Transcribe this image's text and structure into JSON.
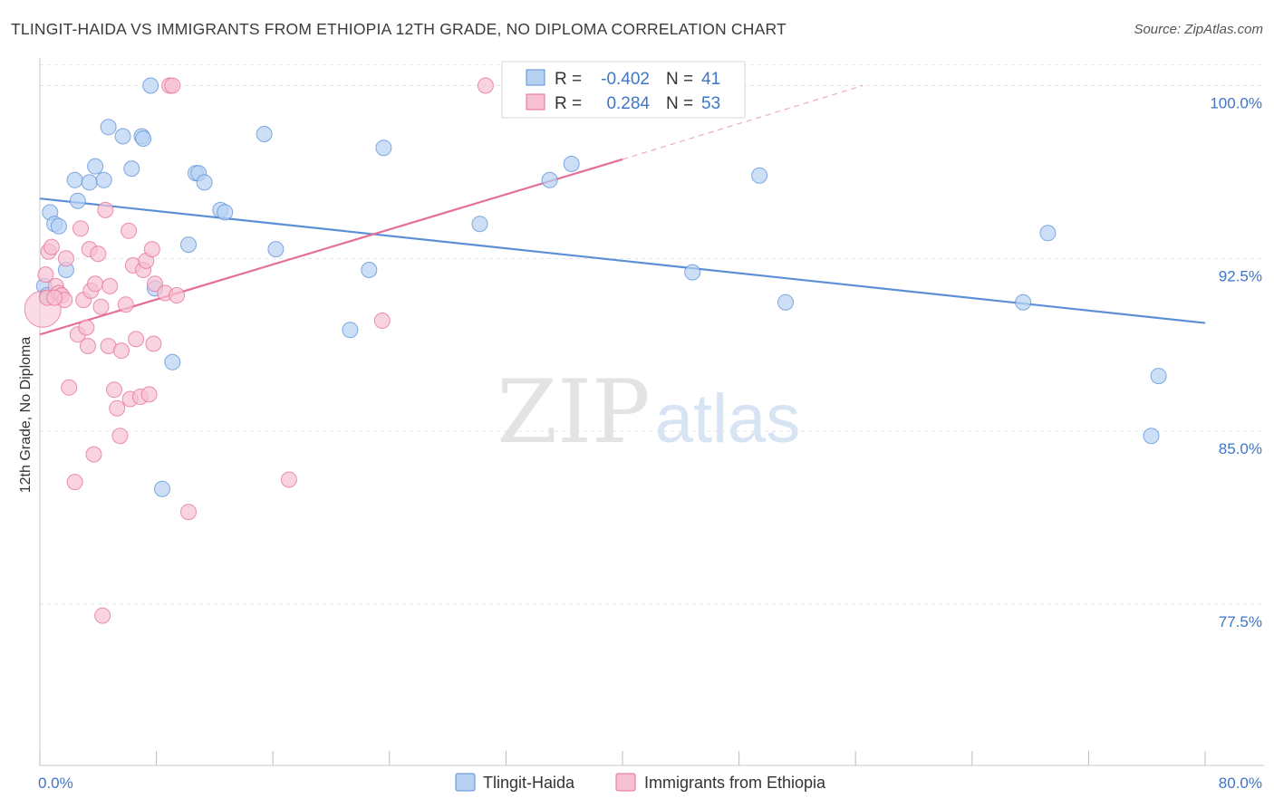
{
  "title": "TLINGIT-HAIDA VS IMMIGRANTS FROM ETHIOPIA 12TH GRADE, NO DIPLOMA CORRELATION CHART",
  "source": "Source: ZipAtlas.com",
  "watermark": {
    "zip": "ZIP",
    "atlas": "atlas"
  },
  "stats_legend": [
    {
      "r_label": "R =",
      "r_value": "-0.402",
      "n_label": "N =",
      "n_value": "41",
      "color": "#5b8fd6",
      "fill": "#b7d1f3"
    },
    {
      "r_label": "R =",
      "r_value": "0.284",
      "n_label": "N =",
      "n_value": "53",
      "color": "#e46f97",
      "fill": "#f7c0d2"
    }
  ],
  "chart_data": {
    "type": "scatter",
    "xlabel": "",
    "ylabel": "12th Grade, No Diploma",
    "xlim": [
      0,
      80
    ],
    "ylim": [
      70.5,
      101.2
    ],
    "x_tick_labels": [
      "0.0%",
      "80.0%"
    ],
    "y_ticks": [
      77.5,
      85.0,
      92.5,
      100.0
    ],
    "y_tick_labels": [
      "77.5%",
      "85.0%",
      "92.5%",
      "100.0%"
    ],
    "grid": "horizontal dashed",
    "legend_position": "bottom",
    "series": [
      {
        "name": "Tlingit-Haida",
        "color": "#5b8fd6",
        "fill": "#b7d1f3",
        "trend": {
          "x": [
            0,
            80
          ],
          "y": [
            95.1,
            89.7
          ],
          "style": "solid"
        },
        "points": [
          [
            0.3,
            91.3
          ],
          [
            0.5,
            90.9
          ],
          [
            0.7,
            94.5
          ],
          [
            1.0,
            94.0
          ],
          [
            1.3,
            93.9
          ],
          [
            1.8,
            92.0
          ],
          [
            2.4,
            95.9
          ],
          [
            2.6,
            95.0
          ],
          [
            3.4,
            95.8
          ],
          [
            3.8,
            96.5
          ],
          [
            4.4,
            95.9
          ],
          [
            4.7,
            98.2
          ],
          [
            5.7,
            97.8
          ],
          [
            6.3,
            96.4
          ],
          [
            7.0,
            97.8
          ],
          [
            7.1,
            97.7
          ],
          [
            7.6,
            100.0
          ],
          [
            7.9,
            91.2
          ],
          [
            8.4,
            82.5
          ],
          [
            9.1,
            88.0
          ],
          [
            10.2,
            93.1
          ],
          [
            10.7,
            96.2
          ],
          [
            10.9,
            96.2
          ],
          [
            11.3,
            95.8
          ],
          [
            12.4,
            94.6
          ],
          [
            12.7,
            94.5
          ],
          [
            15.4,
            97.9
          ],
          [
            16.2,
            92.9
          ],
          [
            21.3,
            89.4
          ],
          [
            22.6,
            92.0
          ],
          [
            23.6,
            97.3
          ],
          [
            30.2,
            94.0
          ],
          [
            35.0,
            95.9
          ],
          [
            36.5,
            96.6
          ],
          [
            44.8,
            91.9
          ],
          [
            49.4,
            96.1
          ],
          [
            51.2,
            90.6
          ],
          [
            67.5,
            90.6
          ],
          [
            69.2,
            93.6
          ],
          [
            76.3,
            84.8
          ],
          [
            76.8,
            87.4
          ]
        ]
      },
      {
        "name": "Immigrants from Ethiopia",
        "color": "#e46f97",
        "fill": "#f7c0d2",
        "trend": {
          "x": [
            0,
            40
          ],
          "y": [
            89.2,
            96.8
          ],
          "style": "solid",
          "extension": {
            "x": [
              40,
              56.5
            ],
            "y": [
              96.8,
              100.0
            ],
            "style": "dashed"
          }
        },
        "points": [
          [
            0.2,
            90.3
          ],
          [
            0.4,
            91.8
          ],
          [
            0.5,
            90.8
          ],
          [
            0.6,
            92.8
          ],
          [
            0.8,
            93.0
          ],
          [
            1.1,
            91.3
          ],
          [
            1.3,
            91.0
          ],
          [
            1.5,
            90.9
          ],
          [
            1.7,
            90.7
          ],
          [
            1.8,
            92.5
          ],
          [
            2.0,
            86.9
          ],
          [
            2.4,
            82.8
          ],
          [
            2.6,
            89.2
          ],
          [
            2.8,
            93.8
          ],
          [
            3.0,
            90.7
          ],
          [
            3.2,
            89.5
          ],
          [
            3.3,
            88.7
          ],
          [
            3.4,
            92.9
          ],
          [
            3.5,
            91.1
          ],
          [
            3.7,
            84.0
          ],
          [
            3.8,
            91.4
          ],
          [
            4.0,
            92.7
          ],
          [
            4.2,
            90.4
          ],
          [
            4.3,
            77.0
          ],
          [
            4.5,
            94.6
          ],
          [
            4.7,
            88.7
          ],
          [
            4.8,
            91.3
          ],
          [
            5.1,
            86.8
          ],
          [
            5.3,
            86.0
          ],
          [
            5.5,
            84.8
          ],
          [
            5.9,
            90.5
          ],
          [
            6.1,
            93.7
          ],
          [
            6.2,
            86.4
          ],
          [
            6.4,
            92.2
          ],
          [
            6.6,
            89.0
          ],
          [
            6.9,
            86.5
          ],
          [
            7.1,
            92.0
          ],
          [
            7.3,
            92.4
          ],
          [
            7.5,
            86.6
          ],
          [
            7.7,
            92.9
          ],
          [
            7.8,
            88.8
          ],
          [
            7.9,
            91.4
          ],
          [
            8.6,
            91.0
          ],
          [
            8.9,
            100.0
          ],
          [
            9.1,
            100.0
          ],
          [
            9.4,
            90.9
          ],
          [
            10.2,
            81.5
          ],
          [
            17.1,
            82.9
          ],
          [
            23.5,
            89.8
          ],
          [
            30.6,
            100.0
          ],
          [
            32.6,
            100.0
          ],
          [
            1.0,
            90.8
          ],
          [
            5.6,
            88.5
          ]
        ]
      }
    ]
  }
}
